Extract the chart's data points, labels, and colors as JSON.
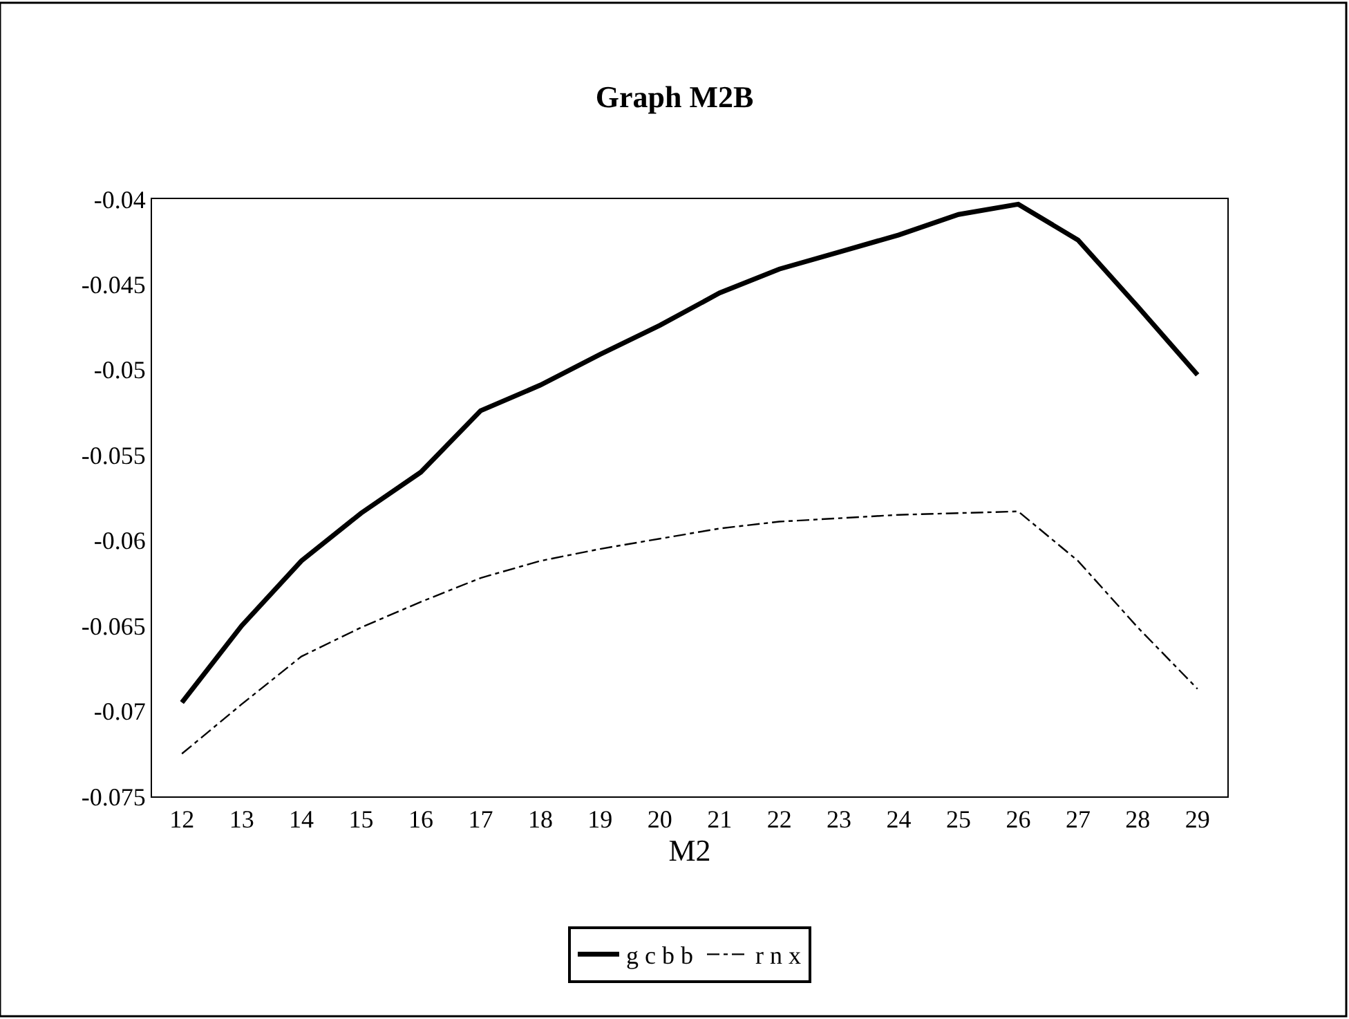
{
  "chart_data": {
    "type": "line",
    "title": "Graph M2B",
    "xlabel": "M2",
    "categories": [
      "12",
      "13",
      "14",
      "15",
      "16",
      "17",
      "18",
      "19",
      "20",
      "21",
      "22",
      "23",
      "24",
      "25",
      "26",
      "27",
      "28",
      "29"
    ],
    "series": [
      {
        "name": "g c b b",
        "color": "#000000",
        "line_style": "solid",
        "values": [
          -0.0695,
          -0.065,
          -0.0612,
          -0.0584,
          -0.056,
          -0.0524,
          -0.0509,
          -0.0491,
          -0.0474,
          -0.0455,
          -0.0441,
          -0.0431,
          -0.0421,
          -0.0409,
          -0.0403,
          -0.0424,
          -0.0463,
          -0.0503
        ]
      },
      {
        "name": "r n x",
        "color": "#000000",
        "line_style": "dashed",
        "values": [
          -0.0725,
          -0.0696,
          -0.0668,
          -0.0651,
          -0.0636,
          -0.0622,
          -0.0612,
          -0.0605,
          -0.0599,
          -0.0593,
          -0.0589,
          -0.0587,
          -0.0585,
          -0.0584,
          -0.0583,
          -0.0612,
          -0.0651,
          -0.0687
        ]
      }
    ],
    "ylim": [
      -0.075,
      -0.04
    ],
    "yticks": [
      -0.075,
      -0.07,
      -0.065,
      -0.06,
      -0.055,
      -0.05,
      -0.045,
      -0.04
    ],
    "legend": "bottom",
    "marker": "none"
  }
}
